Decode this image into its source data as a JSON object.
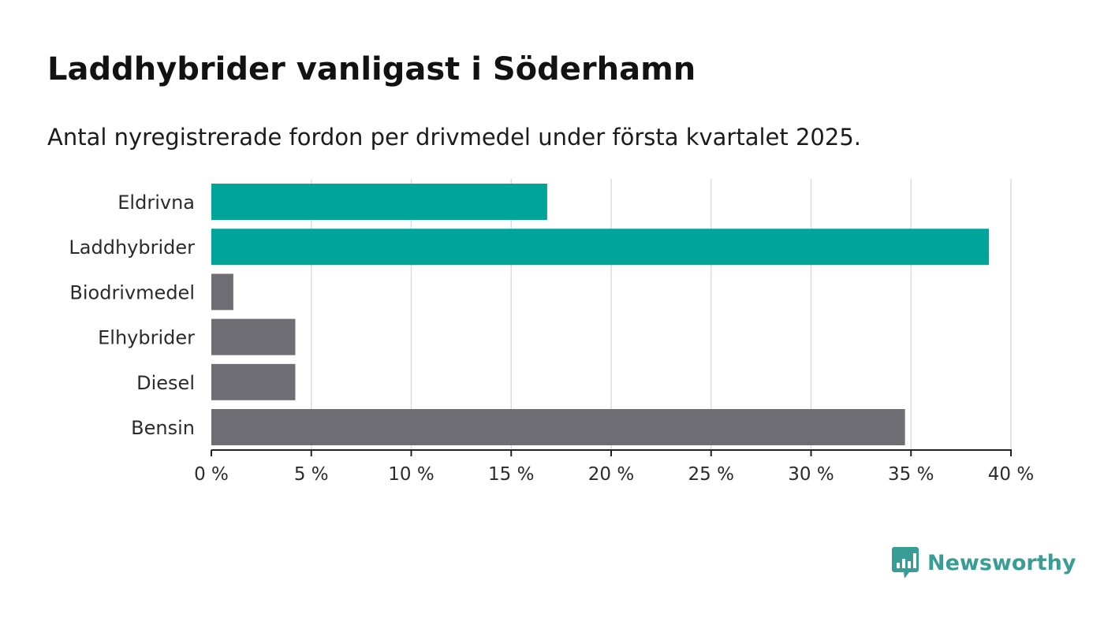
{
  "header": {
    "title": "Laddhybrider vanligast i Söderhamn",
    "subtitle": "Antal nyregistrerade fordon per drivmedel under första kvartalet 2025."
  },
  "chart_data": {
    "type": "bar",
    "orientation": "horizontal",
    "categories": [
      "Eldrivna",
      "Laddhybrider",
      "Biodrivmedel",
      "Elhybrider",
      "Diesel",
      "Bensin"
    ],
    "values": [
      16.8,
      38.9,
      1.1,
      4.2,
      4.2,
      34.7
    ],
    "unit": "%",
    "xlim": [
      0,
      40
    ],
    "xticks": [
      0,
      5,
      10,
      15,
      20,
      25,
      30,
      35,
      40
    ],
    "xtick_labels": [
      "0 %",
      "5 %",
      "10 %",
      "15 %",
      "20 %",
      "25 %",
      "30 %",
      "35 %",
      "40 %"
    ],
    "bar_colors": [
      "#00a499",
      "#00a499",
      "#6f6e75",
      "#6f6e75",
      "#6f6e75",
      "#6f6e75"
    ],
    "grid": true
  },
  "brand": {
    "name": "Newsworthy",
    "color": "#3a9d95",
    "icon": "newsworthy-chart-bubble-icon"
  }
}
